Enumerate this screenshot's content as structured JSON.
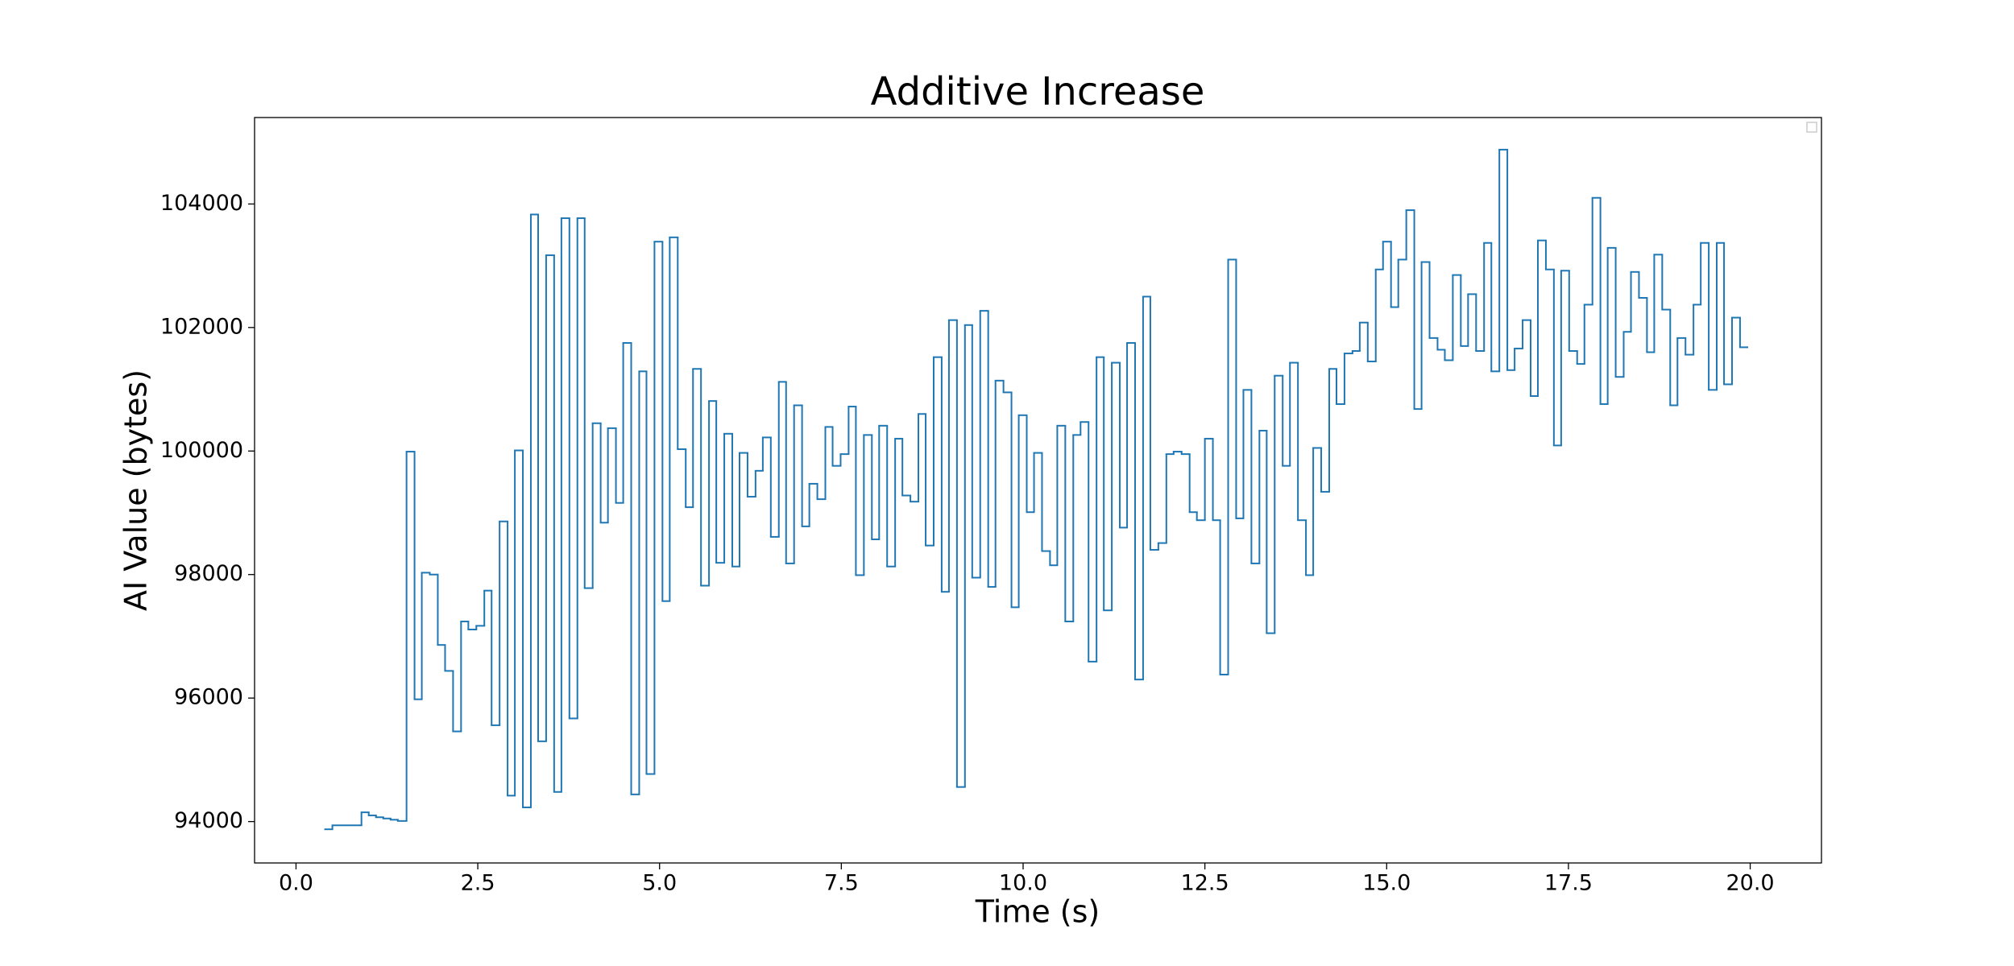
{
  "chart_data": {
    "type": "step",
    "title": "Additive Increase",
    "xlabel": "Time (s)",
    "ylabel": "AI Value (bytes)",
    "x": [
      0.4,
      0.5,
      0.9,
      1.0,
      1.1,
      1.2,
      1.3,
      1.4,
      1.52,
      1.63,
      1.73,
      1.84,
      1.95,
      2.05,
      2.16,
      2.27,
      2.37,
      2.48,
      2.59,
      2.69,
      2.8,
      2.91,
      3.01,
      3.12,
      3.23,
      3.33,
      3.44,
      3.55,
      3.65,
      3.76,
      3.87,
      3.97,
      4.08,
      4.19,
      4.29,
      4.4,
      4.5,
      4.61,
      4.72,
      4.82,
      4.93,
      5.04,
      5.14,
      5.25,
      5.36,
      5.46,
      5.57,
      5.68,
      5.78,
      5.89,
      6.0,
      6.1,
      6.21,
      6.32,
      6.42,
      6.53,
      6.64,
      6.74,
      6.85,
      6.96,
      7.06,
      7.17,
      7.28,
      7.38,
      7.49,
      7.6,
      7.7,
      7.81,
      7.92,
      8.02,
      8.13,
      8.24,
      8.34,
      8.45,
      8.56,
      8.66,
      8.77,
      8.88,
      8.98,
      9.09,
      9.2,
      9.3,
      9.41,
      9.52,
      9.62,
      9.73,
      9.84,
      9.94,
      10.05,
      10.15,
      10.26,
      10.37,
      10.47,
      10.58,
      10.69,
      10.79,
      10.9,
      11.01,
      11.11,
      11.22,
      11.33,
      11.43,
      11.54,
      11.65,
      11.75,
      11.86,
      11.97,
      12.07,
      12.18,
      12.29,
      12.39,
      12.5,
      12.61,
      12.71,
      12.82,
      12.93,
      13.03,
      13.14,
      13.25,
      13.35,
      13.46,
      13.57,
      13.67,
      13.78,
      13.89,
      13.99,
      14.1,
      14.21,
      14.31,
      14.42,
      14.53,
      14.63,
      14.74,
      14.85,
      14.95,
      15.06,
      15.16,
      15.27,
      15.38,
      15.48,
      15.59,
      15.7,
      15.8,
      15.91,
      16.02,
      16.12,
      16.23,
      16.34,
      16.44,
      16.55,
      16.66,
      16.76,
      16.87,
      16.98,
      17.08,
      17.19,
      17.3,
      17.4,
      17.51,
      17.62,
      17.72,
      17.83,
      17.94,
      18.04,
      18.15,
      18.26,
      18.36,
      18.47,
      18.58,
      18.68,
      18.79,
      18.9,
      19.0,
      19.11,
      19.22,
      19.32,
      19.43,
      19.54,
      19.64,
      19.75,
      19.86,
      19.96
    ],
    "series": [
      {
        "color": "#1f77b4",
        "values": [
          93875,
          93940,
          94150,
          94100,
          94070,
          94050,
          94030,
          94010,
          99990,
          95980,
          98030,
          98000,
          96860,
          96440,
          95460,
          97240,
          97110,
          97170,
          97740,
          95560,
          98860,
          94420,
          100010,
          94230,
          103830,
          95300,
          103170,
          94480,
          103770,
          95670,
          103770,
          97780,
          100450,
          98840,
          100370,
          99160,
          101750,
          94440,
          101290,
          94770,
          103390,
          97570,
          103460,
          100030,
          99090,
          101330,
          97820,
          100810,
          98190,
          100280,
          98130,
          99970,
          99260,
          99680,
          100220,
          98610,
          101120,
          98180,
          100740,
          98780,
          99470,
          99220,
          100390,
          99760,
          99950,
          100720,
          97990,
          100260,
          98570,
          100410,
          98130,
          100200,
          99280,
          99180,
          100600,
          98470,
          101520,
          97720,
          102120,
          94560,
          102040,
          97950,
          102270,
          97800,
          101140,
          100950,
          97470,
          100580,
          99010,
          99970,
          98380,
          98150,
          100410,
          97240,
          100260,
          100470,
          96590,
          101520,
          97420,
          101430,
          98760,
          101750,
          96300,
          102500,
          98400,
          98510,
          99950,
          99990,
          99950,
          99010,
          98880,
          100200,
          98880,
          96380,
          103100,
          98910,
          100990,
          98180,
          100330,
          97050,
          101220,
          99760,
          101430,
          98880,
          97990,
          100050,
          99340,
          101330,
          100760,
          101580,
          101620,
          102080,
          101450,
          102940,
          103390,
          102330,
          103100,
          103900,
          100680,
          103060,
          101830,
          101640,
          101470,
          102850,
          101700,
          102540,
          101620,
          103370,
          101290,
          104880,
          101310,
          101660,
          102120,
          100890,
          103410,
          102940,
          100090,
          102920,
          101620,
          101410,
          102370,
          104100,
          100760,
          103290,
          101200,
          101930,
          102900,
          102480,
          101600,
          103180,
          102290,
          100740,
          101830,
          101560,
          102370,
          103370,
          100990,
          103370,
          101080,
          102160,
          101680,
          101680
        ]
      }
    ],
    "xlim": [
      -0.57,
      20.98
    ],
    "ylim": [
      93330,
      105400
    ],
    "xticks": [
      {
        "value": 0,
        "label": "0.0"
      },
      {
        "value": 2.5,
        "label": "2.5"
      },
      {
        "value": 5,
        "label": "5.0"
      },
      {
        "value": 7.5,
        "label": "7.5"
      },
      {
        "value": 10,
        "label": "10.0"
      },
      {
        "value": 12.5,
        "label": "12.5"
      },
      {
        "value": 15,
        "label": "15.0"
      },
      {
        "value": 17.5,
        "label": "17.5"
      },
      {
        "value": 20,
        "label": "20.0"
      }
    ],
    "yticks": [
      94000,
      96000,
      98000,
      100000,
      102000,
      104000
    ],
    "grid": false
  }
}
